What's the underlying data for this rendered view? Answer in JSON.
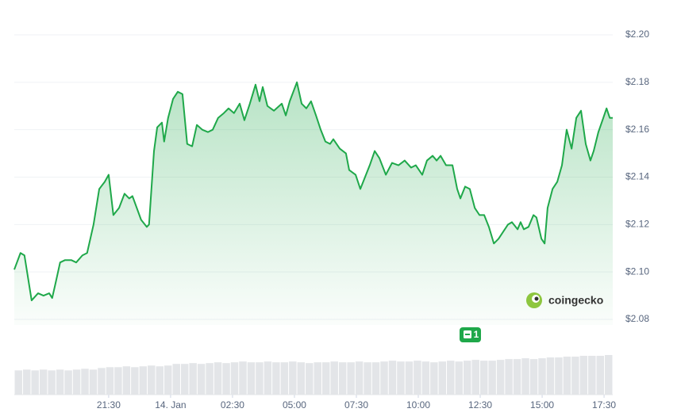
{
  "chart_data": {
    "type": "line",
    "x": [
      17.69,
      17.94,
      18.1,
      18.39,
      18.65,
      18.87,
      19.1,
      19.22,
      19.35,
      19.54,
      19.74,
      19.99,
      20.19,
      20.44,
      20.63,
      20.89,
      21.12,
      21.34,
      21.5,
      21.69,
      21.92,
      22.14,
      22.33,
      22.46,
      22.81,
      23.04,
      23.13,
      23.33,
      23.46,
      23.65,
      23.74,
      23.9,
      24.1,
      24.29,
      24.48,
      24.67,
      24.87,
      25.06,
      25.28,
      25.51,
      25.7,
      25.92,
      26.15,
      26.34,
      26.56,
      26.79,
      26.98,
      27.2,
      27.43,
      27.59,
      27.72,
      27.91,
      28.17,
      28.49,
      28.65,
      28.81,
      29.1,
      29.29,
      29.48,
      29.67,
      29.87,
      30.06,
      30.25,
      30.44,
      30.57,
      30.83,
      31.08,
      31.21,
      31.47,
      31.66,
      31.85,
      32.04,
      32.24,
      32.43,
      32.69,
      32.94,
      33.2,
      33.45,
      33.71,
      33.9,
      34.16,
      34.35,
      34.58,
      34.74,
      34.9,
      35.12,
      35.38,
      35.57,
      35.7,
      35.89,
      36.08,
      36.28,
      36.47,
      36.66,
      36.85,
      37.05,
      37.24,
      37.43,
      37.62,
      37.78,
      38.01,
      38.13,
      38.26,
      38.45,
      38.65,
      38.77,
      38.97,
      39.1,
      39.22,
      39.42,
      39.61,
      39.8,
      39.99,
      40.19,
      40.38,
      40.57,
      40.76,
      40.95,
      41.08,
      41.27,
      41.47,
      41.6,
      41.73,
      41.85
    ],
    "values": [
      2.101,
      2.108,
      2.107,
      2.088,
      2.091,
      2.09,
      2.091,
      2.089,
      2.095,
      2.104,
      2.105,
      2.105,
      2.104,
      2.107,
      2.108,
      2.12,
      2.135,
      2.138,
      2.141,
      2.124,
      2.127,
      2.133,
      2.131,
      2.132,
      2.122,
      2.119,
      2.12,
      2.151,
      2.161,
      2.163,
      2.155,
      2.165,
      2.173,
      2.176,
      2.175,
      2.154,
      2.153,
      2.162,
      2.16,
      2.159,
      2.16,
      2.165,
      2.167,
      2.169,
      2.167,
      2.171,
      2.164,
      2.171,
      2.179,
      2.172,
      2.178,
      2.17,
      2.168,
      2.171,
      2.166,
      2.172,
      2.18,
      2.171,
      2.169,
      2.172,
      2.166,
      2.16,
      2.155,
      2.154,
      2.156,
      2.152,
      2.15,
      2.143,
      2.141,
      2.135,
      2.14,
      2.145,
      2.151,
      2.148,
      2.141,
      2.146,
      2.145,
      2.147,
      2.144,
      2.145,
      2.141,
      2.147,
      2.149,
      2.147,
      2.149,
      2.145,
      2.145,
      2.135,
      2.131,
      2.136,
      2.135,
      2.127,
      2.124,
      2.124,
      2.119,
      2.112,
      2.114,
      2.117,
      2.12,
      2.121,
      2.118,
      2.121,
      2.118,
      2.119,
      2.124,
      2.123,
      2.114,
      2.112,
      2.127,
      2.135,
      2.138,
      2.145,
      2.16,
      2.152,
      2.165,
      2.168,
      2.154,
      2.147,
      2.151,
      2.159,
      2.165,
      2.169,
      2.165,
      2.165
    ],
    "color": "#1fa84a",
    "xlim": [
      17.69,
      41.85
    ],
    "xticks": [
      {
        "value": 21.5,
        "label": "21:30"
      },
      {
        "value": 24,
        "label": "14. Jan"
      },
      {
        "value": 26.5,
        "label": "02:30"
      },
      {
        "value": 29,
        "label": "05:00"
      },
      {
        "value": 31.5,
        "label": "07:30"
      },
      {
        "value": 34,
        "label": "10:00"
      },
      {
        "value": 36.5,
        "label": "12:30"
      },
      {
        "value": 39,
        "label": "15:00"
      },
      {
        "value": 41.5,
        "label": "17:30"
      }
    ],
    "ylim": [
      2.08,
      2.2
    ],
    "yticks": [
      {
        "value": 2.08,
        "label": "$2.08"
      },
      {
        "value": 2.1,
        "label": "$2.10"
      },
      {
        "value": 2.12,
        "label": "$2.12"
      },
      {
        "value": 2.14,
        "label": "$2.14"
      },
      {
        "value": 2.16,
        "label": "$2.16"
      },
      {
        "value": 2.18,
        "label": "$2.18"
      },
      {
        "value": 2.2,
        "label": "$2.20"
      }
    ],
    "grid": true,
    "volume": {
      "color": "#e3e5e8",
      "values": [
        30,
        31,
        30,
        31,
        30,
        31,
        30,
        31,
        32,
        31,
        33,
        34,
        34,
        35,
        34,
        35,
        36,
        35,
        36,
        38,
        38,
        39,
        38,
        39,
        40,
        39,
        40,
        41,
        40,
        40,
        41,
        40,
        40,
        41,
        40,
        39,
        40,
        40,
        41,
        40,
        40,
        41,
        40,
        40,
        41,
        42,
        41,
        41,
        42,
        41,
        40,
        41,
        42,
        41,
        42,
        43,
        42,
        42,
        43,
        44,
        44,
        45,
        44,
        45,
        46,
        46,
        47,
        47,
        48,
        48,
        48,
        49
      ]
    },
    "watermark": "coingecko",
    "annotation": "1"
  }
}
